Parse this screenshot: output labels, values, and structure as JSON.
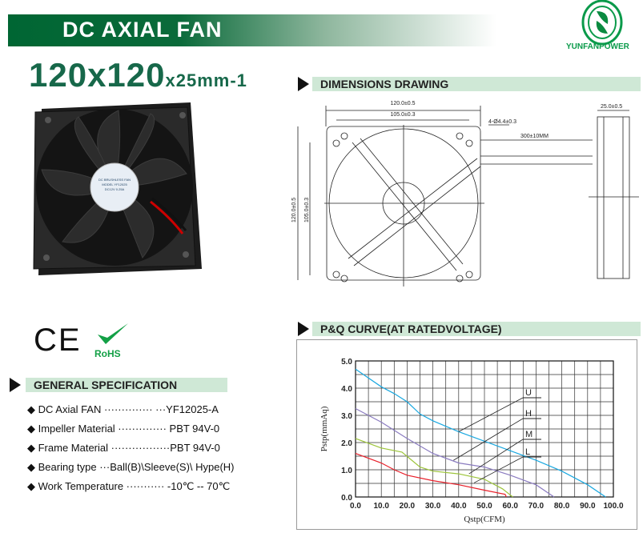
{
  "header": {
    "title": "DC AXIAL FAN",
    "size_main": "120x120",
    "size_sub": "x25mm-1",
    "brand": "YUNFANPOWER"
  },
  "sections": {
    "dimensions": "DIMENSIONS DRAWING",
    "pq": "P&Q CURVE(AT RATEDVOLTAGE)",
    "spec": "GENERAL SPECIFICATION"
  },
  "certs": {
    "ce": "CE",
    "rohs": "RoHS"
  },
  "label": {
    "line1": "DC BRUSHLESS FAN",
    "line2": "MODEL YF12025",
    "line3": "DC12V 0.25A"
  },
  "dimensions": {
    "width": "120.0±0.5",
    "hole_pitch": "105.0±0.3",
    "holes": "4-Ø4.4±0.3",
    "lead": "300±10MM",
    "height": "120.0±0.5",
    "height_pitch": "105.0±0.3",
    "depth": "25.0±0.5"
  },
  "spec": [
    {
      "text": "DC Axial FAN ·············· ···YF12025-A"
    },
    {
      "text": "Impeller Material ·············· PBT 94V-0"
    },
    {
      "text": "Frame Material ·················PBT 94V-0"
    },
    {
      "text": "Bearing type ···Ball(B)\\Sleeve(S)\\ Hype(H)"
    },
    {
      "text": "Work Temperature ··········· -10℃ -- 70℃"
    }
  ],
  "colors": {
    "brand": "#006633",
    "section_bar": "#cfe8d6",
    "U": "#1aa8e0",
    "H": "#8a7bc0",
    "M": "#9cc43a",
    "L": "#e8202a"
  },
  "chart_data": {
    "type": "line",
    "xlabel": "Qstp(CFM)",
    "ylabel": "Pstp(mmAq)",
    "xlim": [
      0,
      100
    ],
    "ylim": [
      0,
      5
    ],
    "xticks": [
      "0.0",
      "10.0",
      "20.0",
      "30.0",
      "40.0",
      "50.0",
      "60.0",
      "70.0",
      "80.0",
      "90.0",
      "100.0"
    ],
    "yticks": [
      "0.0",
      "1.0",
      "2.0",
      "3.0",
      "4.0",
      "5.0"
    ],
    "grid": true,
    "series": [
      {
        "name": "U",
        "points": [
          [
            0,
            4.7
          ],
          [
            10,
            4.05
          ],
          [
            15,
            3.8
          ],
          [
            20,
            3.5
          ],
          [
            25,
            3.05
          ],
          [
            30,
            2.8
          ],
          [
            40,
            2.4
          ],
          [
            50,
            2.05
          ],
          [
            60,
            1.7
          ],
          [
            70,
            1.35
          ],
          [
            80,
            0.95
          ],
          [
            90,
            0.45
          ],
          [
            97,
            0
          ]
        ]
      },
      {
        "name": "H",
        "points": [
          [
            0,
            3.25
          ],
          [
            10,
            2.75
          ],
          [
            20,
            2.15
          ],
          [
            30,
            1.6
          ],
          [
            40,
            1.25
          ],
          [
            50,
            1.1
          ],
          [
            60,
            0.8
          ],
          [
            70,
            0.45
          ],
          [
            77,
            0
          ]
        ]
      },
      {
        "name": "M",
        "points": [
          [
            0,
            2.15
          ],
          [
            10,
            1.8
          ],
          [
            18,
            1.65
          ],
          [
            25,
            1.1
          ],
          [
            30,
            0.95
          ],
          [
            40,
            0.85
          ],
          [
            50,
            0.65
          ],
          [
            57,
            0.3
          ],
          [
            61,
            0
          ]
        ]
      },
      {
        "name": "L",
        "points": [
          [
            0,
            1.6
          ],
          [
            10,
            1.25
          ],
          [
            15,
            1.0
          ],
          [
            20,
            0.8
          ],
          [
            30,
            0.6
          ],
          [
            40,
            0.45
          ],
          [
            50,
            0.25
          ],
          [
            58,
            0.1
          ],
          [
            58.5,
            0
          ]
        ]
      }
    ]
  }
}
